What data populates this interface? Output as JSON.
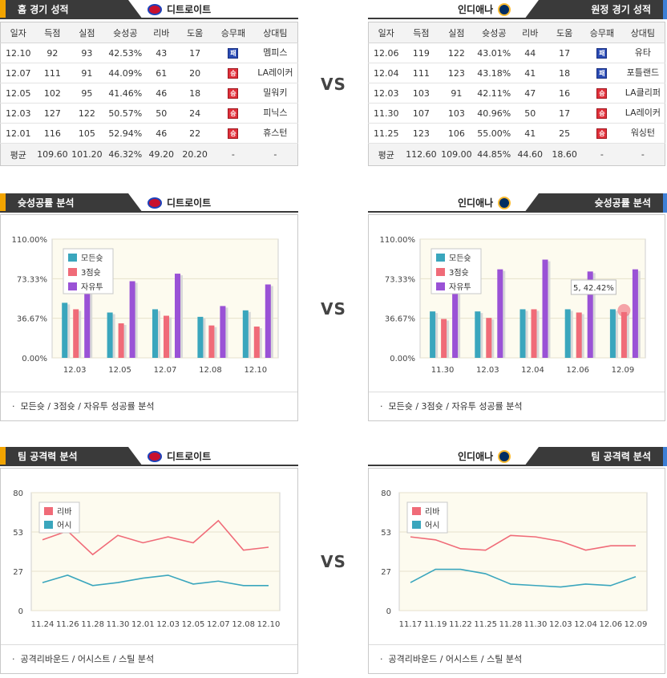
{
  "home": {
    "section_title": "홈 경기 성적",
    "team": "디트로이트",
    "columns": [
      "일자",
      "득점",
      "실점",
      "슛성공",
      "리바",
      "도움",
      "승무패",
      "상대팀"
    ],
    "rows": [
      {
        "date": "12.10",
        "pts": "92",
        "opp": "93",
        "fg": "42.53%",
        "reb": "43",
        "ast": "17",
        "result": "패",
        "team": "멤피스"
      },
      {
        "date": "12.07",
        "pts": "111",
        "opp": "91",
        "fg": "44.09%",
        "reb": "61",
        "ast": "20",
        "result": "승",
        "team": "LA레이커"
      },
      {
        "date": "12.05",
        "pts": "102",
        "opp": "95",
        "fg": "41.46%",
        "reb": "46",
        "ast": "18",
        "result": "승",
        "team": "밀워키"
      },
      {
        "date": "12.03",
        "pts": "127",
        "opp": "122",
        "fg": "50.57%",
        "reb": "50",
        "ast": "24",
        "result": "승",
        "team": "피닉스"
      },
      {
        "date": "12.01",
        "pts": "116",
        "opp": "105",
        "fg": "52.94%",
        "reb": "46",
        "ast": "22",
        "result": "승",
        "team": "휴스턴"
      }
    ],
    "avg": {
      "label": "평균",
      "pts": "109.60",
      "opp": "101.20",
      "fg": "46.32%",
      "reb": "49.20",
      "ast": "20.20",
      "result": "-",
      "team": "-"
    }
  },
  "away": {
    "section_title": "원정 경기 성적",
    "team": "인디애나",
    "columns": [
      "일자",
      "득점",
      "실점",
      "슛성공",
      "리바",
      "도움",
      "승무패",
      "상대팀"
    ],
    "rows": [
      {
        "date": "12.06",
        "pts": "119",
        "opp": "122",
        "fg": "43.01%",
        "reb": "44",
        "ast": "17",
        "result": "패",
        "team": "유타"
      },
      {
        "date": "12.04",
        "pts": "111",
        "opp": "123",
        "fg": "43.18%",
        "reb": "41",
        "ast": "18",
        "result": "패",
        "team": "포틀랜드"
      },
      {
        "date": "12.03",
        "pts": "103",
        "opp": "91",
        "fg": "42.11%",
        "reb": "47",
        "ast": "16",
        "result": "승",
        "team": "LA클리퍼"
      },
      {
        "date": "11.30",
        "pts": "107",
        "opp": "103",
        "fg": "40.96%",
        "reb": "50",
        "ast": "17",
        "result": "승",
        "team": "LA레이커"
      },
      {
        "date": "11.25",
        "pts": "123",
        "opp": "106",
        "fg": "55.00%",
        "reb": "41",
        "ast": "25",
        "result": "승",
        "team": "워싱턴"
      }
    ],
    "avg": {
      "label": "평균",
      "pts": "112.60",
      "opp": "109.00",
      "fg": "44.85%",
      "reb": "44.60",
      "ast": "18.60",
      "result": "-",
      "team": "-"
    }
  },
  "vs_label": "VS",
  "shooting": {
    "section_title": "슛성공률 분석",
    "footer": "모든슛 / 3점슛 / 자유투 성공률 분석",
    "home_team": "디트로이트",
    "away_team": "인디애나"
  },
  "attack": {
    "section_title": "팀 공격력 분석",
    "footer": "공격리바운드 / 어시스트 / 스틸 분석",
    "home_team": "디트로이트",
    "away_team": "인디애나"
  },
  "colors": {
    "all": "#3aa6bd",
    "three": "#f06b78",
    "ft": "#9a52d6",
    "reb": "#f06b78",
    "ast": "#3aa6bd",
    "plot_bg": "#fdfbef"
  },
  "chart_data": [
    {
      "type": "bar",
      "id": "det-shooting",
      "categories": [
        "12.03",
        "12.05",
        "12.07",
        "12.08",
        "12.10"
      ],
      "yticks": [
        "110.00%",
        "73.33%",
        "36.67%",
        "0.00%"
      ],
      "ylim": [
        0,
        110
      ],
      "legend_position": "top-left",
      "series": [
        {
          "name": "모든슛",
          "values": [
            51,
            42,
            45,
            38,
            44
          ]
        },
        {
          "name": "3점슛",
          "values": [
            45,
            32,
            39,
            30,
            29
          ]
        },
        {
          "name": "자유투",
          "values": [
            66,
            71,
            78,
            48,
            68
          ]
        }
      ]
    },
    {
      "type": "bar",
      "id": "ind-shooting",
      "categories": [
        "11.30",
        "12.03",
        "12.04",
        "12.06",
        "12.09"
      ],
      "yticks": [
        "110.00%",
        "73.33%",
        "36.67%",
        "0.00%"
      ],
      "ylim": [
        0,
        110
      ],
      "legend_position": "top-left",
      "tooltip": "5, 42.42%",
      "series": [
        {
          "name": "모든슛",
          "values": [
            43,
            43,
            45,
            45,
            45
          ]
        },
        {
          "name": "3점슛",
          "values": [
            36,
            37,
            45,
            42,
            42.42
          ]
        },
        {
          "name": "자유투",
          "values": [
            68,
            82,
            91,
            80,
            82
          ]
        }
      ]
    },
    {
      "type": "line",
      "id": "det-attack",
      "x": [
        "11.24",
        "11.26",
        "11.28",
        "11.30",
        "12.01",
        "12.03",
        "12.05",
        "12.07",
        "12.08",
        "12.10"
      ],
      "yticks": [
        "80",
        "53",
        "27",
        "0"
      ],
      "ylim": [
        0,
        80
      ],
      "legend_position": "top-left",
      "series": [
        {
          "name": "리바",
          "values": [
            48,
            54,
            38,
            51,
            46,
            50,
            46,
            61,
            41,
            43
          ]
        },
        {
          "name": "어시",
          "values": [
            19,
            24,
            17,
            19,
            22,
            24,
            18,
            20,
            17,
            17
          ]
        }
      ]
    },
    {
      "type": "line",
      "id": "ind-attack",
      "x": [
        "11.17",
        "11.19",
        "11.22",
        "11.25",
        "11.28",
        "11.30",
        "12.03",
        "12.04",
        "12.06",
        "12.09"
      ],
      "yticks": [
        "80",
        "53",
        "27",
        "0"
      ],
      "ylim": [
        0,
        80
      ],
      "legend_position": "top-left",
      "series": [
        {
          "name": "리바",
          "values": [
            50,
            48,
            42,
            41,
            51,
            50,
            47,
            41,
            44,
            44
          ]
        },
        {
          "name": "어시",
          "values": [
            19,
            28,
            28,
            25,
            18,
            17,
            16,
            18,
            17,
            23
          ]
        }
      ]
    }
  ]
}
